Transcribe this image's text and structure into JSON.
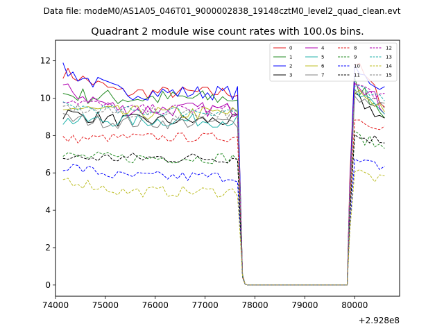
{
  "chart_data": {
    "type": "line",
    "suptitle": "Data file: modeM0/AS1A05_046T01_9000002838_19148cztM0_level2_quad_clean.evt",
    "title": "Quadrant 2 module wise count rates with 100.0s bins.",
    "xlabel": "",
    "ylabel": "",
    "x_offset_label": "+2.928e8",
    "xlim": [
      74000,
      80900
    ],
    "ylim": [
      -0.6,
      13.1
    ],
    "x_ticks": [
      74000,
      75000,
      76000,
      77000,
      78000,
      79000,
      80000
    ],
    "x_tick_labels": [
      "74000",
      "75000",
      "76000",
      "77000",
      "78000",
      "79000",
      "80000"
    ],
    "y_ticks": [
      0,
      2,
      4,
      6,
      8,
      10,
      12
    ],
    "y_tick_labels": [
      "0",
      "2",
      "4",
      "6",
      "8",
      "10",
      "12"
    ],
    "legend_position": "upper-right",
    "segments": [
      {
        "x_start": 74150,
        "x_end": 77650,
        "step": 100
      },
      {
        "x_start": 77700,
        "x_end": 77850,
        "step": 50,
        "transition": "drop"
      },
      {
        "x_start": 77900,
        "x_end": 79850,
        "step": 100,
        "gap": true
      },
      {
        "x_start": 79900,
        "x_end": 80650,
        "step": 100,
        "rise": true
      }
    ],
    "series": [
      {
        "name": "0",
        "color": "#e41a1c",
        "style": "solid",
        "level": 10.3,
        "start": 11.4,
        "recover": 12.3,
        "end": 9.5,
        "amp": 0.35
      },
      {
        "name": "1",
        "color": "#228b22",
        "style": "solid",
        "level": 10.0,
        "start": 10.2,
        "recover": 11.0,
        "end": 9.2,
        "amp": 0.45
      },
      {
        "name": "2",
        "color": "#0000ff",
        "style": "solid",
        "level": 10.3,
        "start": 11.5,
        "recover": 11.5,
        "end": 10.5,
        "amp": 0.4
      },
      {
        "name": "3",
        "color": "#000000",
        "style": "solid",
        "level": 8.8,
        "start": 9.2,
        "recover": 10.2,
        "end": 8.8,
        "amp": 0.35
      },
      {
        "name": "4",
        "color": "#b000b0",
        "style": "solid",
        "level": 9.4,
        "start": 10.5,
        "recover": 11.4,
        "end": 9.3,
        "amp": 0.4
      },
      {
        "name": "5",
        "color": "#20b2aa",
        "style": "solid",
        "level": 8.8,
        "start": 8.8,
        "recover": 10.5,
        "end": 9.0,
        "amp": 0.35
      },
      {
        "name": "6",
        "color": "#bcbd22",
        "style": "solid",
        "level": 9.2,
        "start": 9.5,
        "recover": 10.6,
        "end": 9.4,
        "amp": 0.4
      },
      {
        "name": "7",
        "color": "#808080",
        "style": "solid",
        "level": 8.7,
        "start": 8.9,
        "recover": 10.1,
        "end": 9.6,
        "amp": 0.35
      },
      {
        "name": "8",
        "color": "#e41a1c",
        "style": "dashed",
        "level": 7.9,
        "start": 7.8,
        "recover": 9.0,
        "end": 8.4,
        "amp": 0.25
      },
      {
        "name": "9",
        "color": "#228b22",
        "style": "dashed",
        "level": 6.8,
        "start": 6.9,
        "recover": 8.1,
        "end": 7.3,
        "amp": 0.3
      },
      {
        "name": "10",
        "color": "#0000ff",
        "style": "dashed",
        "level": 5.8,
        "start": 6.4,
        "recover": 6.6,
        "end": 6.3,
        "amp": 0.3
      },
      {
        "name": "11",
        "color": "#000000",
        "style": "dashed",
        "level": 6.8,
        "start": 6.8,
        "recover": 8.0,
        "end": 7.7,
        "amp": 0.3
      },
      {
        "name": "12",
        "color": "#b000b0",
        "style": "dashed",
        "level": 9.4,
        "start": 10.0,
        "recover": 10.9,
        "end": 9.9,
        "amp": 0.3
      },
      {
        "name": "13",
        "color": "#20b2aa",
        "style": "dashed",
        "level": 9.3,
        "start": 9.6,
        "recover": 10.7,
        "end": 9.7,
        "amp": 0.3
      },
      {
        "name": "14",
        "color": "#bcbd22",
        "style": "dashed",
        "level": 5.0,
        "start": 5.7,
        "recover": 6.2,
        "end": 5.5,
        "amp": 0.3
      },
      {
        "name": "15",
        "color": "#808080",
        "style": "dashed",
        "level": 9.2,
        "start": 9.5,
        "recover": 10.4,
        "end": 9.7,
        "amp": 0.3
      }
    ]
  }
}
